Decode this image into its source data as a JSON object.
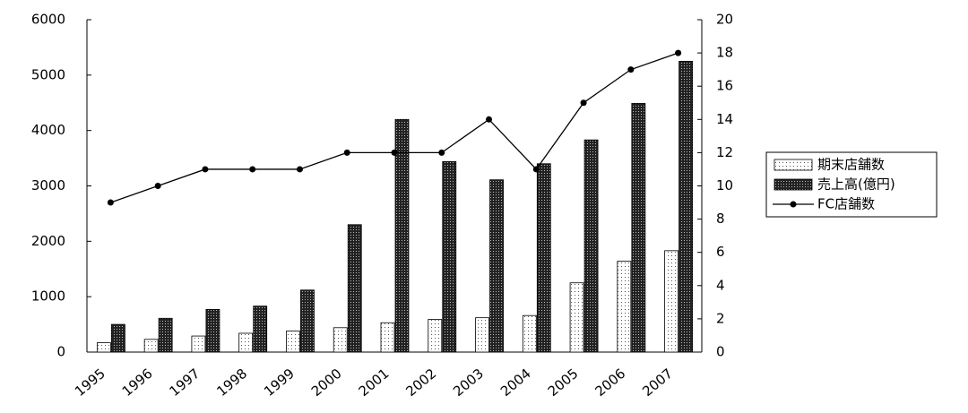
{
  "chart_data": {
    "type": "bar",
    "categories": [
      "1995",
      "1996",
      "1997",
      "1998",
      "1999",
      "2000",
      "2001",
      "2002",
      "2003",
      "2004",
      "2005",
      "2006",
      "2007"
    ],
    "series": [
      {
        "name": "期末店舗数",
        "type": "bar",
        "color": "#ffffff",
        "pattern": "dots",
        "values": [
          170,
          230,
          290,
          340,
          380,
          440,
          530,
          590,
          620,
          660,
          1250,
          1640,
          1830
        ]
      },
      {
        "name": "売上高(億円)",
        "type": "bar",
        "color": "#222222",
        "pattern": "crosshatch",
        "values": [
          500,
          610,
          770,
          830,
          1120,
          2300,
          4200,
          3440,
          3110,
          3400,
          3830,
          4490,
          5250
        ]
      },
      {
        "name": "FC店舗数",
        "type": "line",
        "axis": "y2",
        "color": "#000000",
        "values": [
          9,
          10,
          11,
          11,
          11,
          12,
          12,
          12,
          14,
          11,
          15,
          17,
          18
        ]
      }
    ],
    "ylim": [
      0,
      6000
    ],
    "yticks": [
      0,
      1000,
      2000,
      3000,
      4000,
      5000,
      6000
    ],
    "y2lim": [
      0,
      20
    ],
    "y2ticks": [
      0,
      2,
      4,
      6,
      8,
      10,
      12,
      14,
      16,
      18,
      20
    ],
    "grid": false,
    "legend": "right"
  }
}
